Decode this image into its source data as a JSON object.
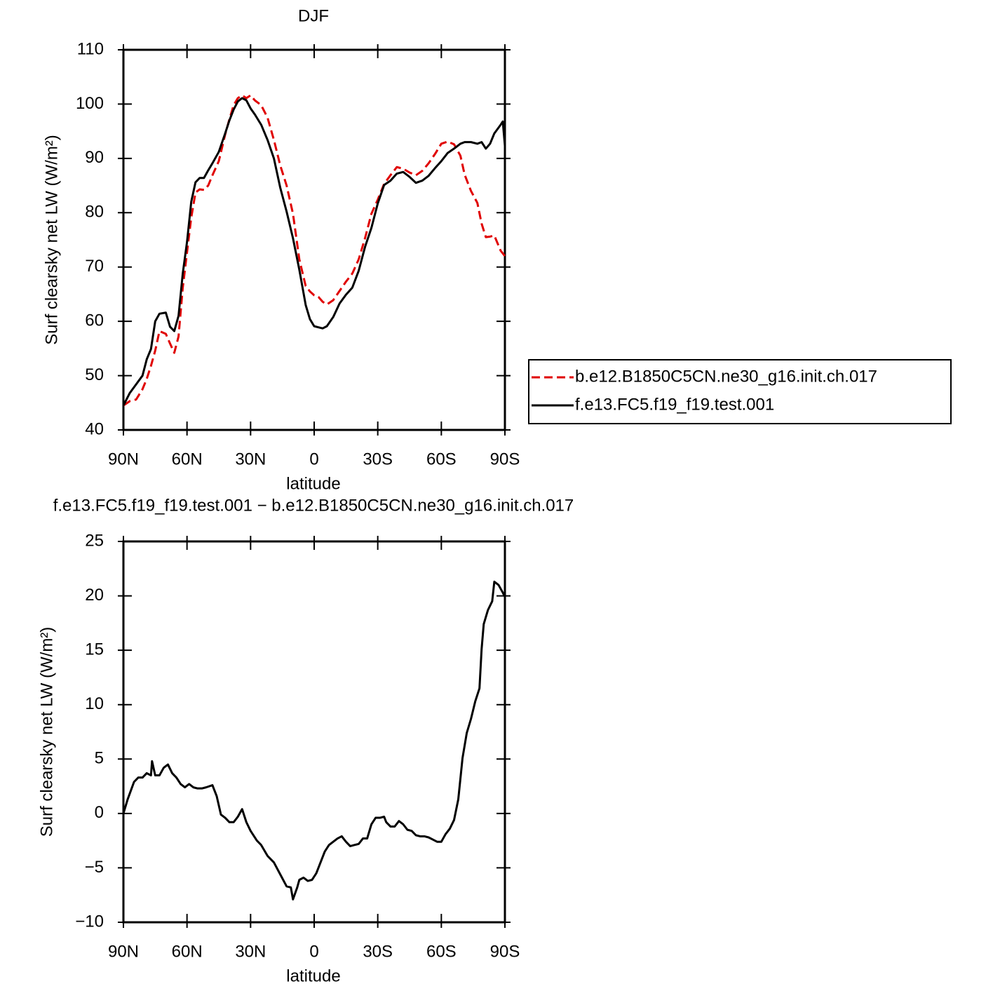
{
  "chart_data": [
    {
      "type": "line",
      "title": "DJF",
      "xlabel": "latitude",
      "ylabel": "Surf clearsky net LW (W/m²)",
      "xlim": [
        90,
        -90
      ],
      "xticks": [
        {
          "value": 90,
          "label": "90N"
        },
        {
          "value": 60,
          "label": "60N"
        },
        {
          "value": 30,
          "label": "30N"
        },
        0,
        {
          "value": -30,
          "label": "30S"
        },
        {
          "value": -60,
          "label": "60S"
        },
        {
          "value": -90,
          "label": "90S"
        }
      ],
      "ylim": [
        40,
        110
      ],
      "yticks": [
        40,
        50,
        60,
        70,
        80,
        90,
        100,
        110
      ],
      "legend": "right",
      "x": [
        90,
        87,
        84,
        81,
        79,
        77,
        75,
        73,
        70,
        68,
        66,
        64,
        62,
        60,
        58,
        56,
        54,
        52,
        50,
        48,
        45,
        42,
        40,
        38,
        36,
        34,
        32,
        30,
        28,
        25,
        22,
        19,
        16,
        13,
        10,
        7,
        4,
        2,
        0,
        -2,
        -4,
        -6,
        -9,
        -12,
        -15,
        -18,
        -21,
        -24,
        -27,
        -30,
        -33,
        -36,
        -39,
        -42,
        -45,
        -48,
        -51,
        -54,
        -57,
        -60,
        -63,
        -66,
        -69,
        -71,
        -74,
        -77,
        -79,
        -81,
        -83,
        -85,
        -88,
        -89,
        -90
      ],
      "series": [
        {
          "name": "b.e12.B1850C5CN.ne30_g16.init.ch.017",
          "color": "#e00000",
          "dash": true,
          "values": [
            44.5,
            45.3,
            45.6,
            47.5,
            49.4,
            51.8,
            54.6,
            58.2,
            57.7,
            55.9,
            54.2,
            57.2,
            66.2,
            72.7,
            79.1,
            83.7,
            84.3,
            84.2,
            85,
            86.9,
            89.5,
            94.4,
            97.2,
            99.8,
            101.1,
            101.6,
            101.1,
            101.6,
            100.7,
            99.8,
            97.5,
            93.4,
            88.7,
            85,
            79.8,
            71.4,
            66.5,
            65.5,
            64.8,
            64.5,
            63.6,
            63.1,
            63.9,
            65.6,
            67.3,
            68.8,
            71.4,
            75.3,
            79.8,
            82.4,
            85.3,
            86.9,
            88.4,
            88.1,
            87.4,
            86.9,
            87.7,
            89.1,
            90.8,
            92.7,
            93.1,
            92.6,
            90.5,
            87,
            84,
            81.8,
            78,
            75.5,
            75.6,
            75.8,
            73,
            72.5,
            72
          ]
        },
        {
          "name": "f.e13.FC5.f19_f19.test.001",
          "color": "#000000",
          "dash": false,
          "values": [
            44.5,
            46.8,
            48.4,
            50,
            53,
            54.9,
            60,
            61.4,
            61.6,
            59,
            58.2,
            61,
            68.8,
            74.6,
            82,
            85.6,
            86.4,
            86.4,
            87.8,
            89.1,
            91.2,
            94.6,
            97,
            99,
            100.5,
            101.1,
            100.7,
            99.2,
            98.1,
            96.2,
            93.4,
            90,
            84.6,
            80.2,
            75.3,
            69.5,
            63,
            60.4,
            59.1,
            58.9,
            58.7,
            59.1,
            60.8,
            63.3,
            64.9,
            66.2,
            69.3,
            73.7,
            77.2,
            81.7,
            85.1,
            85.9,
            87.2,
            87.5,
            86.6,
            85.5,
            85.9,
            86.8,
            88.2,
            89.5,
            91,
            91.8,
            92.7,
            93,
            93,
            92.7,
            93,
            91.8,
            92.7,
            94.6,
            96.2,
            96.8,
            92.3
          ]
        }
      ]
    },
    {
      "type": "line",
      "title": "f.e13.FC5.f19_f19.test.001 − b.e12.B1850C5CN.ne30_g16.init.ch.017",
      "xlabel": "latitude",
      "ylabel": "Surf clearsky net LW (W/m²)",
      "xlim": [
        90,
        -90
      ],
      "xticks": [
        {
          "value": 90,
          "label": "90N"
        },
        {
          "value": 60,
          "label": "60N"
        },
        {
          "value": 30,
          "label": "30N"
        },
        0,
        {
          "value": -30,
          "label": "30S"
        },
        {
          "value": -60,
          "label": "60S"
        },
        {
          "value": -90,
          "label": "90S"
        }
      ],
      "ylim": [
        -10,
        25
      ],
      "yticks": [
        {
          "value": -10,
          "label": "−10"
        },
        {
          "value": -5,
          "label": "−5"
        },
        0,
        5,
        10,
        15,
        20,
        25
      ],
      "x": [
        90,
        88,
        85,
        83,
        81,
        79,
        77,
        76.5,
        75,
        73,
        71,
        69,
        67,
        65,
        63,
        61,
        59,
        57,
        55,
        53,
        51,
        48,
        46,
        44,
        42,
        40,
        38,
        36,
        34,
        32,
        30,
        27,
        25,
        22,
        19,
        16,
        13,
        11,
        10,
        8,
        7,
        5,
        3,
        1,
        -1,
        -3,
        -5,
        -7,
        -9,
        -11,
        -13,
        -15,
        -17,
        -19,
        -21,
        -23,
        -25,
        -27,
        -29,
        -31,
        -33,
        -34,
        -36,
        -38,
        -40,
        -42,
        -44,
        -46,
        -48,
        -50,
        -52,
        -54,
        -56,
        -58,
        -60,
        -62,
        -64,
        -66,
        -68,
        -70,
        -72,
        -74,
        -76,
        -78,
        -79,
        -80,
        -82,
        -84,
        -85,
        -87,
        -89,
        -90
      ],
      "color": "#000000",
      "values": [
        0,
        1.3,
        2.9,
        3.3,
        3.3,
        3.7,
        3.5,
        4.8,
        3.5,
        3.5,
        4.2,
        4.5,
        3.7,
        3.3,
        2.7,
        2.4,
        2.7,
        2.4,
        2.3,
        2.3,
        2.4,
        2.6,
        1.6,
        -0.1,
        -0.4,
        -0.8,
        -0.8,
        -0.3,
        0.4,
        -0.8,
        -1.6,
        -2.5,
        -2.9,
        -3.9,
        -4.5,
        -5.6,
        -6.7,
        -6.8,
        -7.9,
        -6.8,
        -6.1,
        -5.9,
        -6.2,
        -6.1,
        -5.5,
        -4.5,
        -3.5,
        -2.9,
        -2.6,
        -2.3,
        -2.1,
        -2.6,
        -3,
        -2.9,
        -2.8,
        -2.3,
        -2.3,
        -1,
        -0.4,
        -0.4,
        -0.3,
        -0.8,
        -1.2,
        -1.2,
        -0.7,
        -1,
        -1.5,
        -1.6,
        -2,
        -2.1,
        -2.1,
        -2.2,
        -2.4,
        -2.6,
        -2.6,
        -1.9,
        -1.4,
        -0.6,
        1.3,
        5.1,
        7.4,
        8.7,
        10.3,
        11.5,
        15.1,
        17.4,
        18.7,
        19.5,
        21.3,
        21,
        20.3,
        19.9
      ]
    }
  ]
}
